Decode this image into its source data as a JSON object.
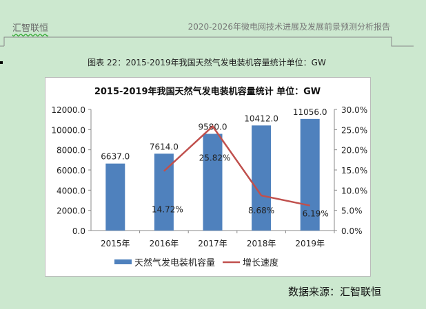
{
  "header": {
    "left": "汇智联恒",
    "right": "2020-2026年微电网技术进展及发展前景预测分析报告"
  },
  "caption": "图表 22：2015-2019年我国天然气发电装机容量统计单位：GW",
  "source": "数据来源：汇智联恒",
  "chart_data": {
    "type": "bar+line",
    "title": "2015-2019年我国天然气发电装机容量统计 单位：GW",
    "categories": [
      "2015年",
      "2016年",
      "2017年",
      "2018年",
      "2019年"
    ],
    "series": [
      {
        "name": "天然气发电装机容量",
        "type": "bar",
        "axis": "left",
        "color": "#4f81bd",
        "values": [
          6637.0,
          7614.0,
          9580.0,
          10412.0,
          11056.0
        ],
        "labels": [
          "6637.0",
          "7614.0",
          "9580.0",
          "10412.0",
          "11056.0"
        ]
      },
      {
        "name": "增长速度",
        "type": "line",
        "axis": "right",
        "color": "#c0504d",
        "values": [
          null,
          14.72,
          25.82,
          8.68,
          6.19
        ],
        "labels": [
          "",
          "14.72%",
          "25.82%",
          "8.68%",
          "6.19%"
        ]
      }
    ],
    "y_left": {
      "range": [
        0,
        12000
      ],
      "ticks": [
        "0.0",
        "2000.0",
        "4000.0",
        "6000.0",
        "8000.0",
        "10000.0",
        "12000.0"
      ]
    },
    "y_right": {
      "range": [
        0,
        30
      ],
      "ticks": [
        "0.0%",
        "5.0%",
        "10.0%",
        "15.0%",
        "20.0%",
        "25.0%",
        "30.0%"
      ]
    },
    "grid": false,
    "legend": "bottom"
  }
}
